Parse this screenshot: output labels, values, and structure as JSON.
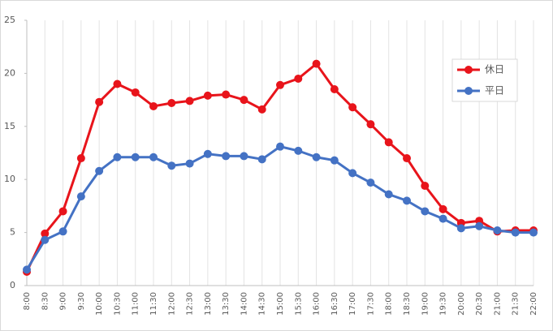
{
  "chart_data": {
    "type": "line",
    "categories": [
      "8:00",
      "8:30",
      "9:00",
      "9:30",
      "10:00",
      "10:30",
      "11:00",
      "11:30",
      "12:00",
      "12:30",
      "13:00",
      "13:30",
      "14:00",
      "14:30",
      "15:00",
      "15:30",
      "16:00",
      "16:30",
      "17:00",
      "17:30",
      "18:00",
      "18:30",
      "19:00",
      "19:30",
      "20:00",
      "20:30",
      "21:00",
      "21:30",
      "22:00"
    ],
    "series": [
      {
        "name": "休日",
        "color": "#e8141b",
        "values": [
          1.3,
          4.9,
          7.0,
          12.0,
          17.3,
          19.0,
          18.2,
          16.9,
          17.2,
          17.4,
          17.9,
          18.0,
          17.5,
          16.6,
          18.9,
          19.5,
          20.9,
          18.5,
          16.8,
          15.2,
          13.5,
          12.0,
          9.4,
          7.2,
          5.9,
          6.1,
          5.1,
          5.2,
          5.2
        ]
      },
      {
        "name": "平日",
        "color": "#4472c4",
        "values": [
          1.5,
          4.3,
          5.1,
          8.4,
          10.8,
          12.1,
          12.1,
          12.1,
          11.3,
          11.5,
          12.4,
          12.2,
          12.2,
          11.9,
          13.1,
          12.7,
          12.1,
          11.8,
          10.6,
          9.7,
          8.6,
          8.0,
          7.0,
          6.3,
          5.4,
          5.6,
          5.2,
          5.0,
          5.0
        ]
      }
    ],
    "ylim": [
      0,
      25
    ],
    "yticks": [
      0,
      5,
      10,
      15,
      20,
      25
    ],
    "grid": true,
    "legend": "upper right"
  }
}
